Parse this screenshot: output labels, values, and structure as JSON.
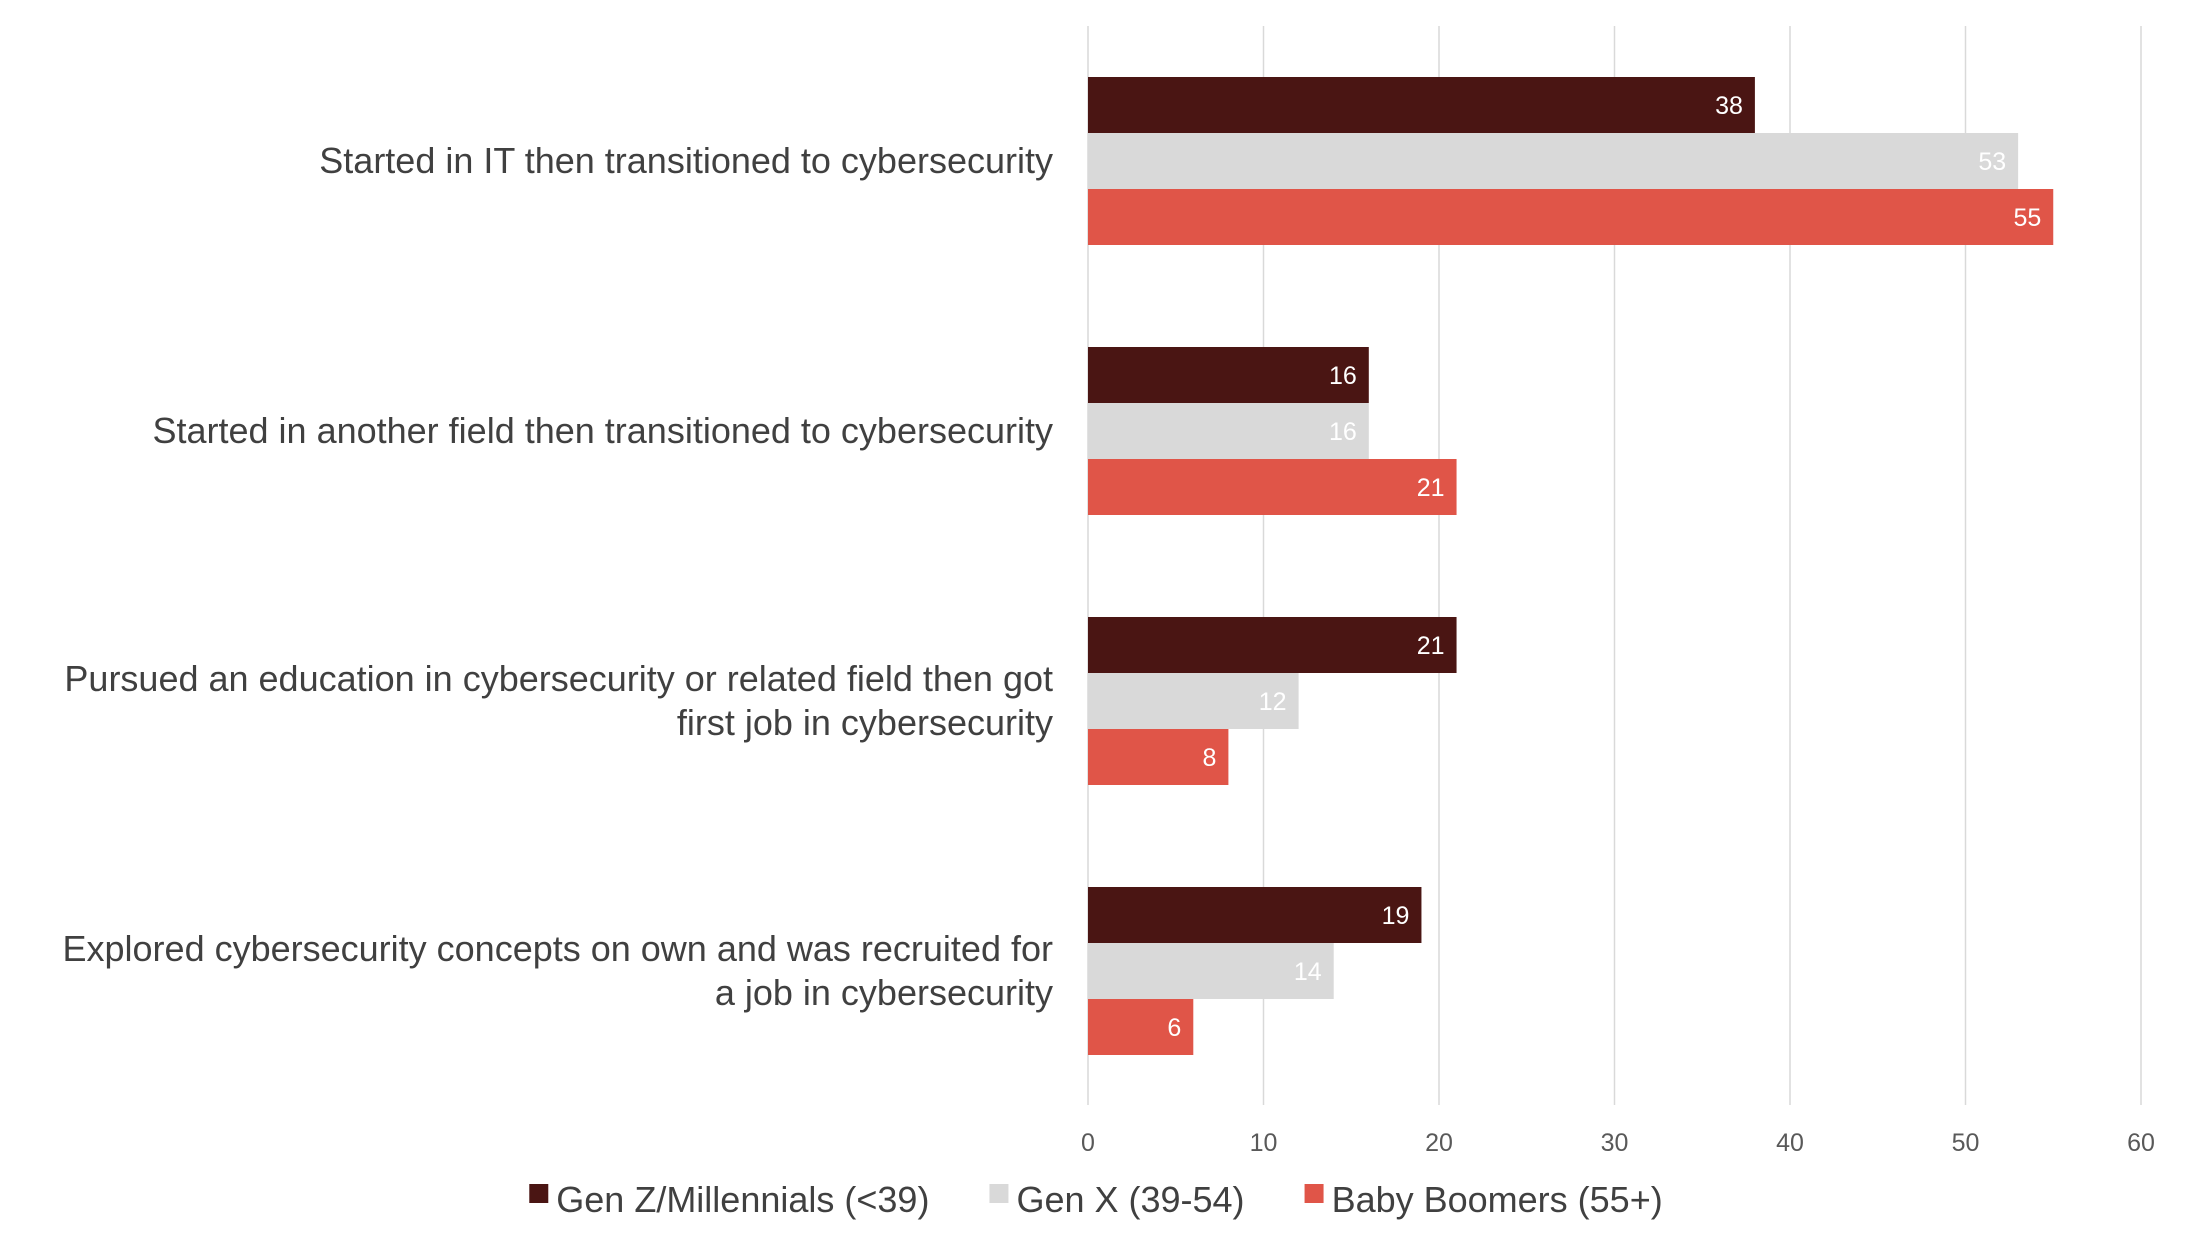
{
  "chart_data": {
    "type": "bar",
    "orientation": "horizontal",
    "categories": [
      [
        "Started in IT then transitioned to cybersecurity"
      ],
      [
        "Started in another field then transitioned to cybersecurity"
      ],
      [
        "Pursued an education in cybersecurity or related field then got",
        "first job in cybersecurity"
      ],
      [
        "Explored cybersecurity concepts on own and was recruited for",
        "a job in cybersecurity"
      ]
    ],
    "series": [
      {
        "name": "Gen Z/Millennials (<39)",
        "color": "#4a1513",
        "values": [
          38,
          16,
          21,
          19
        ]
      },
      {
        "name": "Gen X (39-54)",
        "color": "#d9d9d9",
        "values": [
          53,
          16,
          12,
          14
        ]
      },
      {
        "name": "Baby Boomers (55+)",
        "color": "#e05548",
        "values": [
          55,
          21,
          8,
          6
        ]
      }
    ],
    "xlim": [
      0,
      60
    ],
    "xticks": [
      0,
      10,
      20,
      30,
      40,
      50,
      60
    ],
    "grid": true,
    "data_labels": true,
    "legend_position": "bottom"
  }
}
